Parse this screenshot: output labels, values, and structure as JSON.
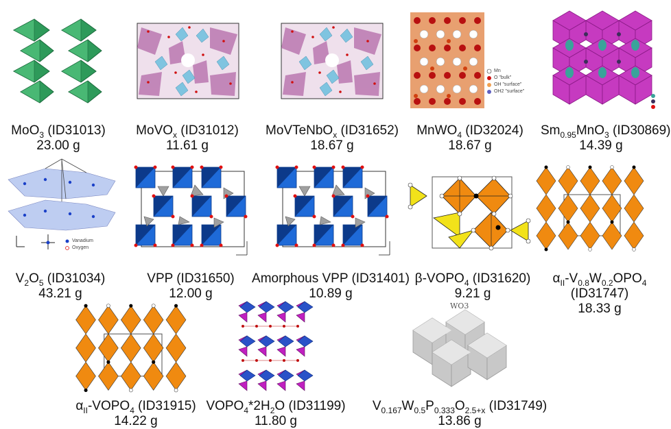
{
  "colors": {
    "green": "#2e9a5a",
    "cyan": "#7fc4e0",
    "magenta": "#c0409a",
    "orange": "#f08a10",
    "yellow": "#f2e21a",
    "blue": "#1e6ad8",
    "gray": "#c8c8c8",
    "red": "#e01010"
  },
  "panels": [
    {
      "icon": "moo3-octahedra-chains",
      "formula": {
        "pre": "MoO",
        "sub": "3",
        "post": " (ID31013)"
      },
      "mass": "23.00 g"
    },
    {
      "icon": "movox-framework",
      "formula": {
        "pre": "MoVO",
        "sub": "x",
        "post": " (ID31012)"
      },
      "mass": "11.61 g"
    },
    {
      "icon": "movtenbox-framework",
      "formula": {
        "pre": "MoVTeNbO",
        "sub": "x",
        "post": " (ID31652)"
      },
      "mass": "18.67 g"
    },
    {
      "icon": "mnwo4-layered-structure",
      "formula": {
        "pre": "MnWO",
        "sub": "4",
        "post": " (ID32024)"
      },
      "mass": "18.67 g",
      "legend": [
        "Mn",
        "O \"bulk\"",
        "OH \"surface\"",
        "OH2 \"surface\""
      ]
    },
    {
      "icon": "sm-mno3-perovskite",
      "formula": {
        "pre": "Sm",
        "sub": "0.95",
        "post": "MnO",
        "sub2": "3",
        "post2": " (ID30869)"
      },
      "mass": "14.39 g"
    },
    {
      "icon": "v2o5-layers",
      "formula": {
        "pre": "V",
        "sub": "2",
        "post": "O",
        "sub2": "5",
        "post2": " (ID31034)"
      },
      "mass": "43.21 g",
      "legend": [
        "Vanadium",
        "Oxygen"
      ]
    },
    {
      "icon": "vpp-blue-polyhedra",
      "formula": {
        "pre": "VPP (ID31650)"
      },
      "mass": "12.00 g"
    },
    {
      "icon": "amorphous-vpp-blue-polyhedra",
      "formula": {
        "pre": "Amorphous VPP (ID31401)"
      },
      "mass": "10.89 g"
    },
    {
      "icon": "beta-vopo4-orange-yellow",
      "formula": {
        "pre": "β-VOPO",
        "sub": "4",
        "post": " (ID31620)"
      },
      "mass": "9.21 g"
    },
    {
      "icon": "alpha2-v08w02opo4-orange-yellow",
      "formula": {
        "pre": "α",
        "sub": "II",
        "post": "-V",
        "sub2": "0.8",
        "post2": "W",
        "sub3": "0.2",
        "post3": "OPO",
        "sub4": "4"
      },
      "line2": "(ID31747)",
      "mass": "18.33 g"
    },
    {
      "icon": "alpha2-vopo4-orange-yellow",
      "formula": {
        "pre": "α",
        "sub": "II",
        "post": "-VOPO",
        "sub2": "4",
        "post2": " (ID31915)"
      },
      "mass": "14.22 g"
    },
    {
      "icon": "vopo4-2h2o-layers",
      "formula": {
        "pre": "VOPO",
        "sub": "4",
        "post": "*2H",
        "sub2": "2",
        "post2": "O  (ID31199)"
      },
      "mass": "11.80 g"
    },
    {
      "icon": "wo3-gray-octahedra",
      "label": "WO3",
      "formula": {
        "pre": "V",
        "sub": "0.167",
        "post": "W",
        "sub2": "0.5",
        "post2": "P",
        "sub3": "0.333",
        "post3": "O",
        "sub4": "2.5+x",
        "post4": " (ID31749)"
      },
      "mass": "13.86 g"
    }
  ]
}
